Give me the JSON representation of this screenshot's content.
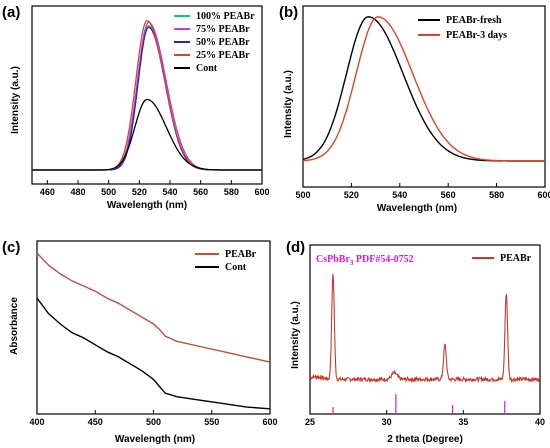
{
  "chart_data": [
    {
      "panel": "(a)",
      "type": "line",
      "xlabel": "Wavelength (nm)",
      "ylabel": "Intensity (a.u.)",
      "xlim": [
        450,
        600
      ],
      "xticks": [
        460,
        480,
        500,
        520,
        540,
        560,
        580,
        600
      ],
      "legend_position": "top-right",
      "series": [
        {
          "name": "100% PEABr",
          "color": "#22c25a",
          "peak_x": 526,
          "fwhm": 19,
          "peak_y": 0.88
        },
        {
          "name": "75%  PEABr",
          "color": "#b63fe0",
          "peak_x": 526,
          "fwhm": 20,
          "peak_y": 0.9
        },
        {
          "name": "50%  PEABr",
          "color": "#2a2aa8",
          "peak_x": 526,
          "fwhm": 19,
          "peak_y": 0.87
        },
        {
          "name": "25%  PEABr",
          "color": "#d2472a",
          "peak_x": 525,
          "fwhm": 20,
          "peak_y": 0.91
        },
        {
          "name": "Cont",
          "color": "#000000",
          "peak_x": 525,
          "fwhm": 22,
          "peak_y": 0.43
        }
      ]
    },
    {
      "panel": "(b)",
      "type": "line",
      "xlabel": "Wavelength (nm)",
      "ylabel": "Intensity (a.u.)",
      "xlim": [
        500,
        600
      ],
      "xticks": [
        500,
        520,
        540,
        560,
        580,
        600
      ],
      "legend_position": "top-right",
      "series": [
        {
          "name": "PEABr-fresh",
          "color": "#000000",
          "peak_x": 527,
          "fwhm": 25,
          "peak_y": 0.93
        },
        {
          "name": "PEABr-3 days",
          "color": "#d2472a",
          "peak_x": 531,
          "fwhm": 25,
          "peak_y": 0.93
        }
      ]
    },
    {
      "panel": "(c)",
      "type": "line",
      "xlabel": "Wavelength (nm)",
      "ylabel": "Absorbance",
      "xlim": [
        400,
        600
      ],
      "xticks": [
        400,
        450,
        500,
        550,
        600
      ],
      "legend_position": "top-right",
      "series": [
        {
          "name": "PEABr",
          "color": "#b5533c",
          "x": [
            400,
            410,
            420,
            430,
            440,
            450,
            460,
            470,
            480,
            490,
            500,
            505,
            510,
            520,
            540,
            560,
            580,
            600
          ],
          "y": [
            0.93,
            0.86,
            0.81,
            0.77,
            0.74,
            0.71,
            0.67,
            0.64,
            0.6,
            0.56,
            0.52,
            0.49,
            0.45,
            0.42,
            0.39,
            0.36,
            0.33,
            0.3
          ]
        },
        {
          "name": "Cont",
          "color": "#000000",
          "x": [
            400,
            410,
            420,
            430,
            440,
            450,
            460,
            470,
            480,
            490,
            500,
            505,
            510,
            520,
            540,
            560,
            580,
            600
          ],
          "y": [
            0.67,
            0.58,
            0.52,
            0.47,
            0.44,
            0.4,
            0.36,
            0.33,
            0.29,
            0.25,
            0.2,
            0.16,
            0.12,
            0.1,
            0.08,
            0.06,
            0.04,
            0.03
          ]
        }
      ]
    },
    {
      "panel": "(d)",
      "type": "line",
      "xlabel": "2 theta (Degree)",
      "ylabel": "Intensity (a.u.)",
      "xlim": [
        25,
        40
      ],
      "xticks": [
        25,
        30,
        35,
        40
      ],
      "legend_position": "top-right",
      "reference_label": "CsPbBr",
      "reference_sub": "3",
      "reference_code": " PDF#54-0752",
      "reference_color": "#d21ad2",
      "reference_lines": [
        {
          "x": 26.5,
          "h": 0.35
        },
        {
          "x": 30.6,
          "h": 1.0
        },
        {
          "x": 34.3,
          "h": 0.45
        },
        {
          "x": 37.7,
          "h": 0.65
        }
      ],
      "series": [
        {
          "name": "PEABr",
          "color": "#c0392b",
          "baseline": 0.1,
          "peaks": [
            {
              "x": 26.5,
              "h": 0.83,
              "w": 0.12
            },
            {
              "x": 30.5,
              "h": 0.05,
              "w": 0.25
            },
            {
              "x": 33.8,
              "h": 0.27,
              "w": 0.13
            },
            {
              "x": 37.8,
              "h": 0.68,
              "w": 0.12
            }
          ]
        }
      ]
    }
  ],
  "labels": {
    "a": "(a)",
    "b": "(b)",
    "c": "(c)",
    "d": "(d)"
  }
}
